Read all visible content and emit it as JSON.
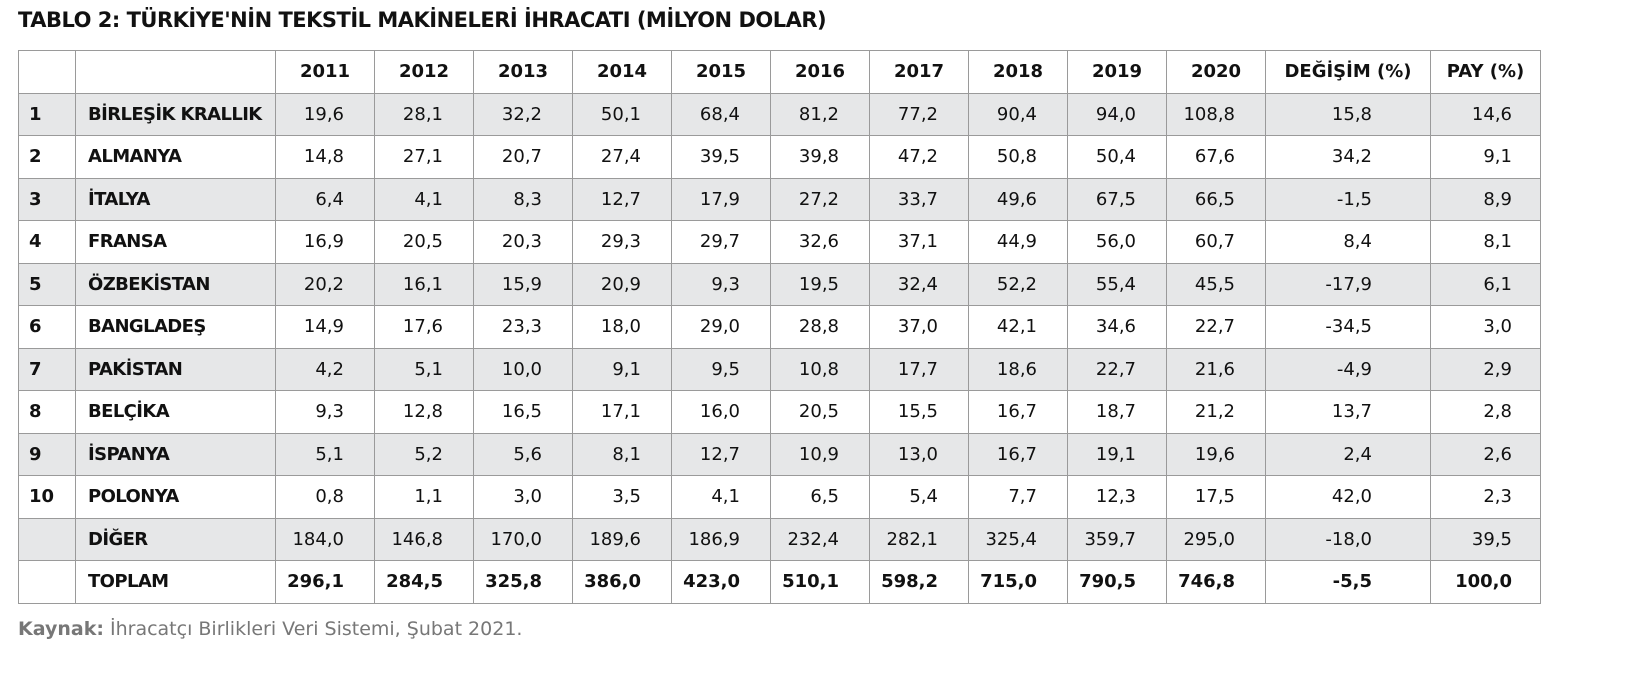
{
  "title": "TABLO 2: TÜRKİYE'NİN TEKSTİL MAKİNELERİ İHRACATI (MİLYON DOLAR)",
  "table": {
    "columns": [
      "2011",
      "2012",
      "2013",
      "2014",
      "2015",
      "2016",
      "2017",
      "2018",
      "2019",
      "2020",
      "DEĞİŞİM (%)",
      "PAY (%)"
    ],
    "rows": [
      {
        "rank": "1",
        "name": "BİRLEŞİK KRALLIK",
        "values": [
          "19,6",
          "28,1",
          "32,2",
          "50,1",
          "68,4",
          "81,2",
          "77,2",
          "90,4",
          "94,0",
          "108,8",
          "15,8",
          "14,6"
        ]
      },
      {
        "rank": "2",
        "name": "ALMANYA",
        "values": [
          "14,8",
          "27,1",
          "20,7",
          "27,4",
          "39,5",
          "39,8",
          "47,2",
          "50,8",
          "50,4",
          "67,6",
          "34,2",
          "9,1"
        ]
      },
      {
        "rank": "3",
        "name": "İTALYA",
        "values": [
          "6,4",
          "4,1",
          "8,3",
          "12,7",
          "17,9",
          "27,2",
          "33,7",
          "49,6",
          "67,5",
          "66,5",
          "-1,5",
          "8,9"
        ]
      },
      {
        "rank": "4",
        "name": "FRANSA",
        "values": [
          "16,9",
          "20,5",
          "20,3",
          "29,3",
          "29,7",
          "32,6",
          "37,1",
          "44,9",
          "56,0",
          "60,7",
          "8,4",
          "8,1"
        ]
      },
      {
        "rank": "5",
        "name": "ÖZBEKİSTAN",
        "values": [
          "20,2",
          "16,1",
          "15,9",
          "20,9",
          "9,3",
          "19,5",
          "32,4",
          "52,2",
          "55,4",
          "45,5",
          "-17,9",
          "6,1"
        ]
      },
      {
        "rank": "6",
        "name": "BANGLADEŞ",
        "values": [
          "14,9",
          "17,6",
          "23,3",
          "18,0",
          "29,0",
          "28,8",
          "37,0",
          "42,1",
          "34,6",
          "22,7",
          "-34,5",
          "3,0"
        ]
      },
      {
        "rank": "7",
        "name": "PAKİSTAN",
        "values": [
          "4,2",
          "5,1",
          "10,0",
          "9,1",
          "9,5",
          "10,8",
          "17,7",
          "18,6",
          "22,7",
          "21,6",
          "-4,9",
          "2,9"
        ]
      },
      {
        "rank": "8",
        "name": "BELÇİKA",
        "values": [
          "9,3",
          "12,8",
          "16,5",
          "17,1",
          "16,0",
          "20,5",
          "15,5",
          "16,7",
          "18,7",
          "21,2",
          "13,7",
          "2,8"
        ]
      },
      {
        "rank": "9",
        "name": "İSPANYA",
        "values": [
          "5,1",
          "5,2",
          "5,6",
          "8,1",
          "12,7",
          "10,9",
          "13,0",
          "16,7",
          "19,1",
          "19,6",
          "2,4",
          "2,6"
        ]
      },
      {
        "rank": "10",
        "name": "POLONYA",
        "values": [
          "0,8",
          "1,1",
          "3,0",
          "3,5",
          "4,1",
          "6,5",
          "5,4",
          "7,7",
          "12,3",
          "17,5",
          "42,0",
          "2,3"
        ]
      },
      {
        "name": "DİĞER",
        "values": [
          "184,0",
          "146,8",
          "170,0",
          "189,6",
          "186,9",
          "232,4",
          "282,1",
          "325,4",
          "359,7",
          "295,0",
          "-18,0",
          "39,5"
        ]
      },
      {
        "name": "TOPLAM",
        "values": [
          "296,1",
          "284,5",
          "325,8",
          "386,0",
          "423,0",
          "510,1",
          "598,2",
          "715,0",
          "790,5",
          "746,8",
          "-5,5",
          "100,0"
        ]
      }
    ]
  },
  "source": {
    "label": "Kaynak:",
    "text": "İhracatçı Birlikleri Veri Sistemi, Şubat 2021."
  }
}
